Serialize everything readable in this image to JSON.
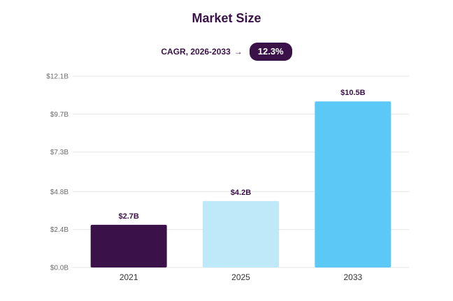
{
  "header": {
    "title": "Market Size",
    "cagr_label": "CAGR, 2026-2033",
    "cagr_arrow": "→",
    "cagr_value": "12.3%"
  },
  "colors": {
    "title": "#3a1148",
    "pill": "#3a1148",
    "grid": "#e6e6e6",
    "bars": [
      "#3a1148",
      "#bde9f9",
      "#5bc8f5"
    ]
  },
  "chart_data": {
    "type": "bar",
    "title": "Market Size",
    "categories": [
      "2021",
      "2025",
      "2033"
    ],
    "values": [
      2.7,
      4.2,
      10.5
    ],
    "data_labels": [
      "$2.7B",
      "$4.2B",
      "$10.5B"
    ],
    "yticks": [
      0.0,
      2.4,
      4.8,
      7.3,
      9.7,
      12.1
    ],
    "ytick_labels": [
      "$0.0B",
      "$2.4B",
      "$4.8B",
      "$7.3B",
      "$9.7B",
      "$12.1B"
    ],
    "ylim": [
      0,
      12.1
    ],
    "xlabel": "",
    "ylabel": "",
    "grid": true,
    "legend": "none"
  }
}
